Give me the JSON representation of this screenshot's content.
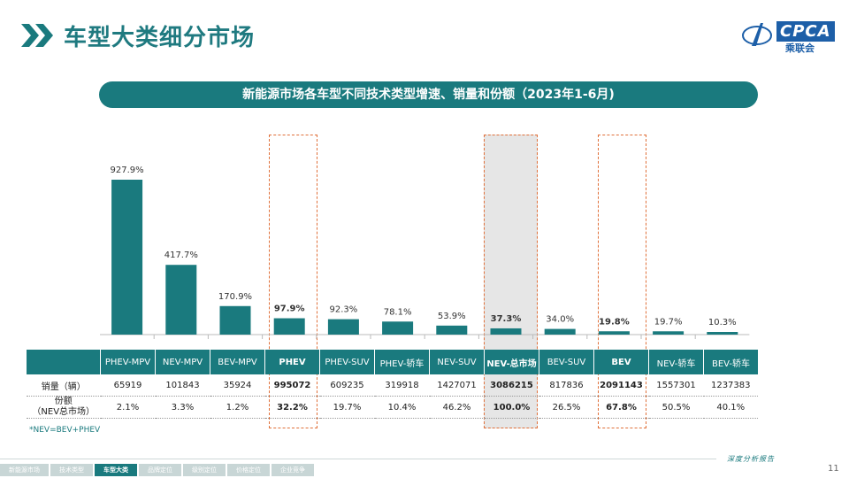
{
  "header": {
    "title": "车型大类细分市场",
    "logo_text": "CPCA",
    "logo_sub": "乘联会"
  },
  "banner": "新能源市场各车型不同技术类型增速、销量和份额（2023年1-6月)",
  "chart_data": {
    "type": "bar",
    "categories": [
      "PHEV-MPV",
      "NEV-MPV",
      "BEV-MPV",
      "PHEV",
      "PHEV-SUV",
      "PHEV-轿车",
      "NEV-SUV",
      "NEV-总市场",
      "BEV-SUV",
      "BEV",
      "NEV-轿车",
      "BEV-轿车"
    ],
    "series": [
      {
        "values": [
          927.9,
          417.7,
          170.9,
          97.9,
          92.3,
          78.1,
          53.9,
          37.3,
          34.0,
          19.8,
          19.7,
          10.3
        ]
      }
    ],
    "data_labels": [
      "927.9%",
      "417.7%",
      "170.9%",
      "97.9%",
      "92.3%",
      "78.1%",
      "53.9%",
      "37.3%",
      "34.0%",
      "19.8%",
      "19.7%",
      "10.3%"
    ],
    "bold_categories": [
      "PHEV",
      "NEV-总市场",
      "BEV"
    ],
    "ylim": [
      0,
      1000
    ],
    "bar_color": "#1a7a7e"
  },
  "table": {
    "header_label": "",
    "rows": [
      {
        "label": "销量（辆）",
        "values": [
          "65919",
          "101843",
          "35924",
          "995072",
          "609235",
          "319918",
          "1427071",
          "3086215",
          "817836",
          "2091143",
          "1557301",
          "1237383"
        ]
      },
      {
        "label": "份额\n（NEV总市场）",
        "values": [
          "2.1%",
          "3.3%",
          "1.2%",
          "32.2%",
          "19.7%",
          "10.4%",
          "46.2%",
          "100.0%",
          "26.5%",
          "67.8%",
          "50.5%",
          "40.1%"
        ]
      }
    ]
  },
  "footnote": "*NEV=BEV+PHEV",
  "signature": "深度分析报告",
  "page_number": "11",
  "nav": [
    "新能源市场",
    "技术类型",
    "车型大类",
    "品牌定位",
    "级别定位",
    "价格定位",
    "企业竞争"
  ],
  "nav_active": "车型大类"
}
